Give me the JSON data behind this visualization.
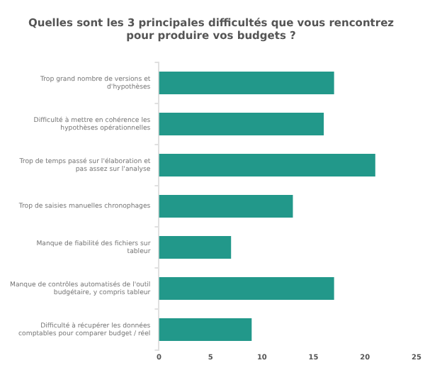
{
  "chart_data": {
    "type": "bar",
    "orientation": "horizontal",
    "title": "Quelles sont les 3 principales difficultés que vous rencontrez pour produire vos budgets ?",
    "categories": [
      "Trop grand nombre de versions et d'hypothèses",
      "Difficulté à mettre en cohérence les hypothèses opérationnelles",
      "Trop de temps passé sur l'élaboration et pas assez sur l'analyse",
      "Trop de saisies manuelles chronophages",
      "Manque de fiabilité des fichiers sur tableur",
      "Manque de contrôles automatisés de l'outil budgétaire, y compris tableur",
      "Difficulté à récupérer les données comptables pour comparer budget / réel"
    ],
    "values": [
      17,
      16,
      21,
      13,
      7,
      17,
      9
    ],
    "color": "#22988a",
    "xlim": [
      0,
      25
    ],
    "xticks": [
      0,
      5,
      10,
      15,
      20,
      25
    ],
    "grid": false,
    "legend": false
  }
}
